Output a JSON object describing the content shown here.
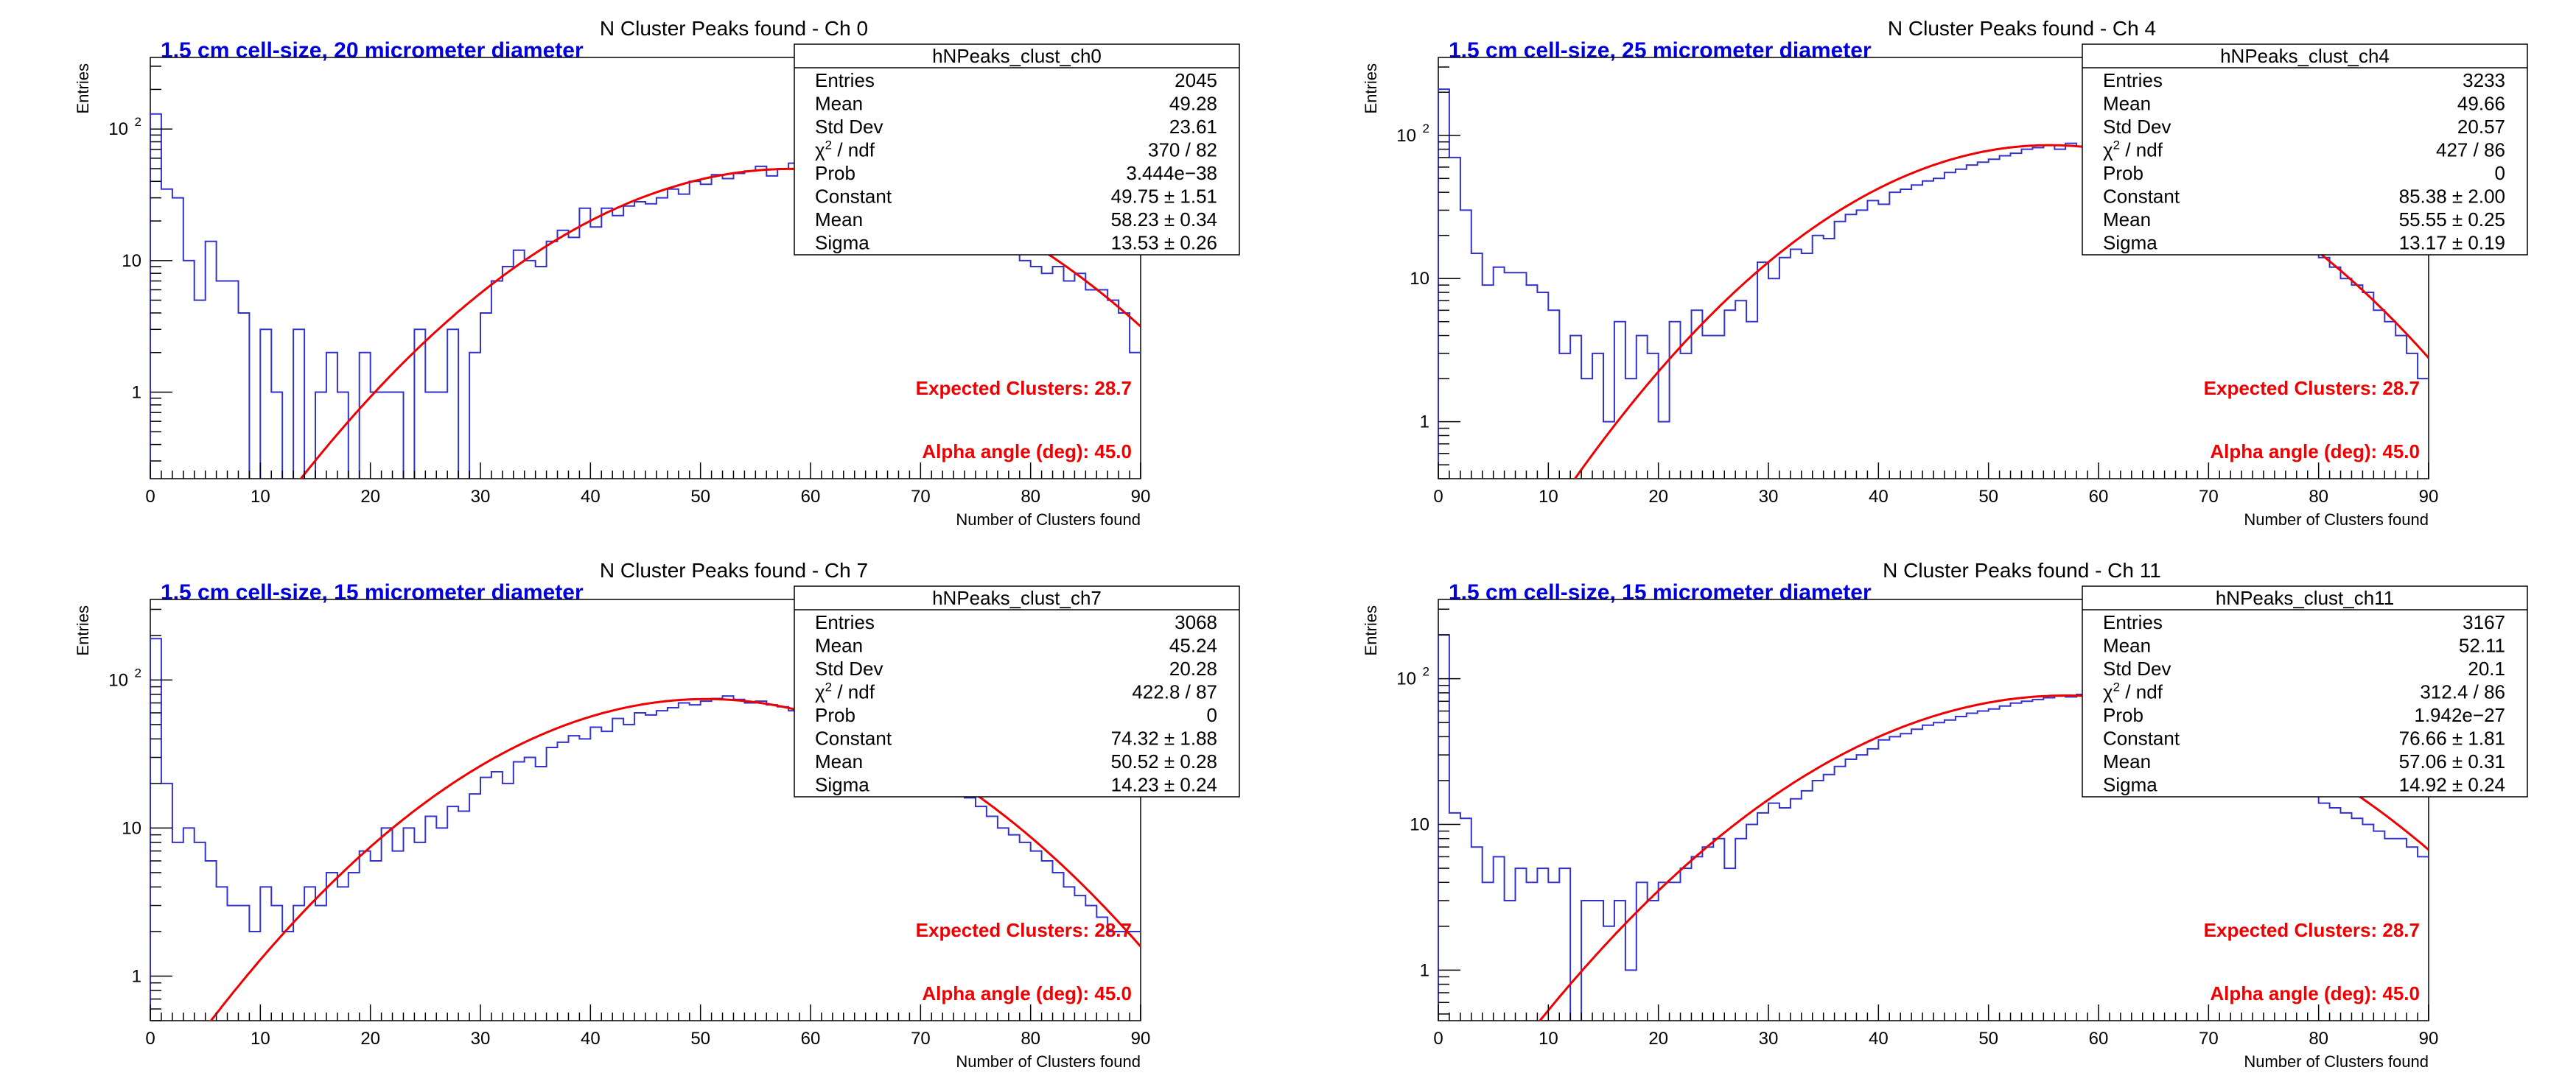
{
  "axis_labels": {
    "x": "Number of Clusters found",
    "y": "Entries"
  },
  "stat_labels": {
    "entries": "Entries",
    "mean": "Mean",
    "stddev": "Std Dev",
    "chi2_sym": "χ",
    "chi2_sup": "2",
    "chi2_rest": " / ndf",
    "prob": "Prob",
    "constant": "Constant",
    "fmean": "Mean",
    "sigma": "Sigma"
  },
  "colors": {
    "histogram": "#3333cc",
    "fit": "#ee0000",
    "subtitle": "#0000dd",
    "annotation": "#ee0000"
  },
  "chart_data": [
    {
      "type": "histogram",
      "title": "N Cluster Peaks found - Ch 0",
      "subtitle": "1.5 cm cell-size, 20 micrometer diameter",
      "xlim": [
        0,
        90
      ],
      "ylim": [
        0.22,
        350
      ],
      "ylog": true,
      "x_ticks": [
        "0",
        "10",
        "20",
        "30",
        "40",
        "50",
        "60",
        "70",
        "80",
        "90"
      ],
      "y_ticks": [
        {
          "v": 1,
          "label": "1"
        },
        {
          "v": 10,
          "label": "10"
        },
        {
          "v": 100,
          "label": "10",
          "sup": "2"
        }
      ],
      "stats": {
        "name": "hNPeaks_clust_ch0",
        "entries": "2045",
        "mean": "49.28",
        "stddev": "23.61",
        "chi2": "370 / 82",
        "prob": "3.444e−38",
        "constant": "49.75 ± 1.51",
        "fmean": "58.23 ± 0.34",
        "sigma": "13.53 ± 0.26"
      },
      "fit": {
        "constant": 49.75,
        "mean": 58.23,
        "sigma": 13.53
      },
      "annotations": {
        "expected": "Expected Clusters: 28.7",
        "alpha": "Alpha angle (deg): 45.0"
      },
      "bin_width": 1,
      "counts": [
        130,
        35,
        30,
        10,
        5,
        14,
        7,
        7,
        4,
        0,
        3,
        1,
        0,
        3,
        0,
        1,
        2,
        1,
        0,
        2,
        1,
        1,
        1,
        0,
        3,
        1,
        1,
        3,
        0,
        2,
        4,
        7,
        9,
        12,
        10,
        9,
        14,
        17,
        15,
        25,
        18,
        25,
        22,
        26,
        28,
        27,
        30,
        35,
        32,
        40,
        38,
        45,
        42,
        46,
        48,
        52,
        44,
        50,
        55,
        52,
        50,
        48,
        46,
        45,
        42,
        40,
        38,
        35,
        32,
        30,
        28,
        25,
        23,
        20,
        18,
        16,
        15,
        13,
        12,
        10,
        9,
        8,
        9,
        7,
        8,
        6,
        6,
        5,
        4,
        2
      ]
    },
    {
      "type": "histogram",
      "title": "N Cluster Peaks found - Ch 4",
      "subtitle": "1.5 cm cell-size, 25 micrometer diameter",
      "xlim": [
        0,
        90
      ],
      "ylim": [
        0.4,
        350
      ],
      "ylog": true,
      "x_ticks": [
        "0",
        "10",
        "20",
        "30",
        "40",
        "50",
        "60",
        "70",
        "80",
        "90"
      ],
      "y_ticks": [
        {
          "v": 1,
          "label": "1"
        },
        {
          "v": 10,
          "label": "10"
        },
        {
          "v": 100,
          "label": "10",
          "sup": "2"
        }
      ],
      "stats": {
        "name": "hNPeaks_clust_ch4",
        "entries": "3233",
        "mean": "49.66",
        "stddev": "20.57",
        "chi2": "427 / 86",
        "prob": "0",
        "constant": "85.38 ± 2.00",
        "fmean": "55.55 ± 0.25",
        "sigma": "13.17 ± 0.19"
      },
      "fit": {
        "constant": 85.38,
        "mean": 55.55,
        "sigma": 13.17
      },
      "annotations": {
        "expected": "Expected Clusters: 28.7",
        "alpha": "Alpha angle (deg): 45.0"
      },
      "bin_width": 1,
      "counts": [
        210,
        70,
        30,
        15,
        9,
        12,
        11,
        11,
        9,
        8,
        6,
        3,
        4,
        2,
        3,
        1,
        5,
        2,
        4,
        3,
        1,
        5,
        3,
        6,
        4,
        4,
        6,
        7,
        5,
        13,
        10,
        14,
        16,
        15,
        20,
        19,
        25,
        28,
        30,
        35,
        33,
        40,
        42,
        45,
        48,
        50,
        55,
        58,
        62,
        65,
        68,
        72,
        75,
        80,
        82,
        85,
        80,
        88,
        84,
        82,
        80,
        78,
        76,
        72,
        70,
        65,
        60,
        55,
        50,
        45,
        40,
        38,
        35,
        30,
        28,
        25,
        22,
        20,
        18,
        16,
        14,
        12,
        10,
        9,
        8,
        6,
        5,
        4,
        3,
        2
      ]
    },
    {
      "type": "histogram",
      "title": "N Cluster Peaks found - Ch 7",
      "subtitle": "1.5 cm cell-size, 15 micrometer diameter",
      "xlim": [
        0,
        90
      ],
      "ylim": [
        0.5,
        350
      ],
      "ylog": true,
      "x_ticks": [
        "0",
        "10",
        "20",
        "30",
        "40",
        "50",
        "60",
        "70",
        "80",
        "90"
      ],
      "y_ticks": [
        {
          "v": 1,
          "label": "1"
        },
        {
          "v": 10,
          "label": "10"
        },
        {
          "v": 100,
          "label": "10",
          "sup": "2"
        }
      ],
      "stats": {
        "name": "hNPeaks_clust_ch7",
        "entries": "3068",
        "mean": "45.24",
        "stddev": "20.28",
        "chi2": "422.8 / 87",
        "prob": "0",
        "constant": "74.32 ± 1.88",
        "fmean": "50.52 ± 0.28",
        "sigma": "14.23 ± 0.24"
      },
      "fit": {
        "constant": 74.32,
        "mean": 50.52,
        "sigma": 14.23
      },
      "annotations": {
        "expected": "Expected Clusters: 28.7",
        "alpha": "Alpha angle (deg): 45.0"
      },
      "bin_width": 1,
      "counts": [
        190,
        20,
        8,
        10,
        8,
        6,
        4,
        3,
        3,
        2,
        4,
        3,
        2,
        3,
        4,
        3,
        5,
        4,
        5,
        7,
        6,
        10,
        7,
        10,
        8,
        12,
        10,
        14,
        13,
        17,
        22,
        24,
        20,
        28,
        30,
        26,
        35,
        38,
        42,
        40,
        48,
        45,
        55,
        50,
        60,
        58,
        62,
        65,
        70,
        68,
        72,
        75,
        78,
        74,
        70,
        72,
        68,
        66,
        62,
        60,
        58,
        55,
        50,
        48,
        44,
        40,
        36,
        33,
        30,
        28,
        25,
        22,
        20,
        18,
        16,
        14,
        12,
        10,
        9,
        8,
        7,
        6,
        5,
        4,
        3.5,
        3,
        2.5,
        2,
        2,
        2
      ]
    },
    {
      "type": "histogram",
      "title": "N Cluster Peaks found - Ch 11",
      "subtitle": "1.5 cm cell-size, 15 micrometer diameter",
      "xlim": [
        0,
        90
      ],
      "ylim": [
        0.45,
        350
      ],
      "ylog": true,
      "x_ticks": [
        "0",
        "10",
        "20",
        "30",
        "40",
        "50",
        "60",
        "70",
        "80",
        "90"
      ],
      "y_ticks": [
        {
          "v": 1,
          "label": "1"
        },
        {
          "v": 10,
          "label": "10"
        },
        {
          "v": 100,
          "label": "10",
          "sup": "2"
        }
      ],
      "stats": {
        "name": "hNPeaks_clust_ch11",
        "entries": "3167",
        "mean": "52.11",
        "stddev": "20.1",
        "chi2": "312.4 / 86",
        "prob": "1.942e−27",
        "constant": "76.66 ± 1.81",
        "fmean": "57.06 ± 0.31",
        "sigma": "14.92 ± 0.24"
      },
      "fit": {
        "constant": 76.66,
        "mean": 57.06,
        "sigma": 14.92
      },
      "annotations": {
        "expected": "Expected Clusters: 28.7",
        "alpha": "Alpha angle (deg): 45.0"
      },
      "bin_width": 1,
      "counts": [
        200,
        12,
        11,
        7,
        4,
        6,
        3,
        5,
        4,
        5,
        4,
        5,
        0,
        3,
        3,
        2,
        3,
        1,
        4,
        3,
        4,
        4,
        5,
        6,
        7,
        8,
        5,
        8,
        10,
        12,
        14,
        13,
        15,
        17,
        20,
        22,
        25,
        28,
        30,
        33,
        38,
        40,
        42,
        45,
        48,
        50,
        52,
        55,
        58,
        60,
        62,
        65,
        68,
        70,
        72,
        74,
        76,
        75,
        78,
        72,
        70,
        68,
        65,
        60,
        58,
        55,
        52,
        48,
        45,
        42,
        38,
        35,
        32,
        30,
        27,
        25,
        22,
        20,
        18,
        16,
        14,
        13,
        12,
        11,
        10,
        9,
        8,
        8,
        7,
        6
      ]
    }
  ]
}
